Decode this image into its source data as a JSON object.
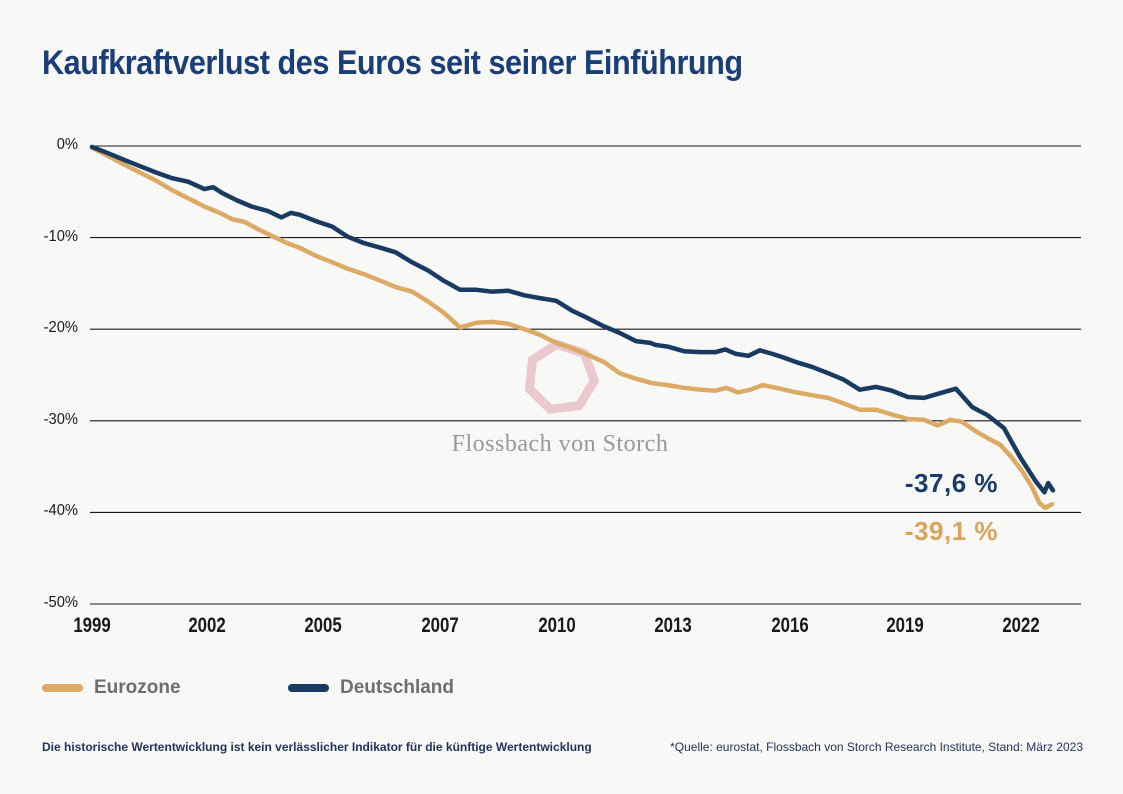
{
  "title": "Kaufkraftverlust des Euros seit seiner Einführung",
  "watermark": {
    "text": "Flossbach von Storch"
  },
  "end_labels": {
    "deutschland": "-37,6 %",
    "eurozone": "-39,1 %"
  },
  "legend": {
    "items": [
      {
        "label": "Eurozone",
        "color": "#dcaa64"
      },
      {
        "label": "Deutschland",
        "color": "#193a61"
      }
    ]
  },
  "footer": {
    "disclaimer": "Die historische Wertentwicklung ist kein verlässlicher Indikator für die künftige Wertentwicklung",
    "source": "*Quelle: eurostat, Flossbach von Storch Research Institute, Stand: März 2023"
  },
  "colors": {
    "background": "#f8f8f7",
    "title": "#1c3e78",
    "grid": "#1a1a1a",
    "eurozone_line": "#dcaa64",
    "deutschland_line": "#193a61",
    "end_label_deutschland": "#1a3c6b",
    "end_label_eurozone": "#d9a45c",
    "watermark_ring": "#e7bcc5",
    "watermark_text": "#98999b",
    "axis_text": "#1a1a1a",
    "legend_text": "#6e6e6e",
    "footer_text": "#20355e"
  },
  "chart_data": {
    "type": "line",
    "title": "Kaufkraftverlust des Euros seit seiner Einführung",
    "xlabel": "",
    "ylabel": "",
    "ylim": [
      0,
      -50
    ],
    "grid": "horizontal",
    "legend_position": "bottom-left",
    "unit": "%",
    "y_ticks": [
      {
        "label": "0%",
        "value": 0
      },
      {
        "label": "-10%",
        "value": -10
      },
      {
        "label": "-20%",
        "value": -20
      },
      {
        "label": "-30%",
        "value": -30
      },
      {
        "label": "-40%",
        "value": -40
      },
      {
        "label": "-50%",
        "value": -50
      }
    ],
    "x_ticks": [
      {
        "label": "1999",
        "t": 0.0
      },
      {
        "label": "2002",
        "t": 0.12
      },
      {
        "label": "2005",
        "t": 0.24
      },
      {
        "label": "2007",
        "t": 0.362
      },
      {
        "label": "2010",
        "t": 0.484
      },
      {
        "label": "2013",
        "t": 0.605
      },
      {
        "label": "2016",
        "t": 0.726
      },
      {
        "label": "2019",
        "t": 0.846
      },
      {
        "label": "2022",
        "t": 0.967
      }
    ],
    "series": [
      {
        "name": "Eurozone",
        "color": "#dcaa64",
        "final_value": "-39,1 %",
        "points": [
          [
            0.0,
            -0.2
          ],
          [
            0.017,
            -1.1
          ],
          [
            0.033,
            -2.0
          ],
          [
            0.05,
            -2.9
          ],
          [
            0.067,
            -3.8
          ],
          [
            0.083,
            -4.8
          ],
          [
            0.1,
            -5.7
          ],
          [
            0.117,
            -6.6
          ],
          [
            0.133,
            -7.3
          ],
          [
            0.146,
            -8.0
          ],
          [
            0.159,
            -8.3
          ],
          [
            0.173,
            -9.1
          ],
          [
            0.187,
            -9.8
          ],
          [
            0.203,
            -10.6
          ],
          [
            0.216,
            -11.1
          ],
          [
            0.233,
            -12.0
          ],
          [
            0.25,
            -12.7
          ],
          [
            0.266,
            -13.4
          ],
          [
            0.283,
            -14.0
          ],
          [
            0.3,
            -14.7
          ],
          [
            0.316,
            -15.4
          ],
          [
            0.333,
            -15.9
          ],
          [
            0.35,
            -17.0
          ],
          [
            0.366,
            -18.2
          ],
          [
            0.383,
            -19.8
          ],
          [
            0.4,
            -19.3
          ],
          [
            0.416,
            -19.2
          ],
          [
            0.433,
            -19.4
          ],
          [
            0.45,
            -20.0
          ],
          [
            0.466,
            -20.6
          ],
          [
            0.483,
            -21.5
          ],
          [
            0.5,
            -22.1
          ],
          [
            0.516,
            -22.8
          ],
          [
            0.533,
            -23.6
          ],
          [
            0.549,
            -24.8
          ],
          [
            0.566,
            -25.4
          ],
          [
            0.583,
            -25.9
          ],
          [
            0.599,
            -26.1
          ],
          [
            0.616,
            -26.4
          ],
          [
            0.633,
            -26.6
          ],
          [
            0.649,
            -26.7
          ],
          [
            0.66,
            -26.4
          ],
          [
            0.672,
            -26.9
          ],
          [
            0.685,
            -26.6
          ],
          [
            0.698,
            -26.1
          ],
          [
            0.716,
            -26.5
          ],
          [
            0.733,
            -26.9
          ],
          [
            0.749,
            -27.2
          ],
          [
            0.766,
            -27.5
          ],
          [
            0.782,
            -28.1
          ],
          [
            0.799,
            -28.8
          ],
          [
            0.816,
            -28.8
          ],
          [
            0.832,
            -29.3
          ],
          [
            0.849,
            -29.8
          ],
          [
            0.866,
            -29.9
          ],
          [
            0.88,
            -30.5
          ],
          [
            0.893,
            -29.9
          ],
          [
            0.905,
            -30.1
          ],
          [
            0.919,
            -31.1
          ],
          [
            0.932,
            -31.9
          ],
          [
            0.945,
            -32.6
          ],
          [
            0.957,
            -34.0
          ],
          [
            0.968,
            -35.5
          ],
          [
            0.978,
            -37.2
          ],
          [
            0.986,
            -39.0
          ],
          [
            0.992,
            -39.5
          ],
          [
            0.999,
            -39.1
          ]
        ]
      },
      {
        "name": "Deutschland",
        "color": "#193a61",
        "final_value": "-37,6 %",
        "points": [
          [
            0.0,
            -0.1
          ],
          [
            0.017,
            -0.8
          ],
          [
            0.033,
            -1.5
          ],
          [
            0.05,
            -2.2
          ],
          [
            0.067,
            -2.9
          ],
          [
            0.083,
            -3.5
          ],
          [
            0.1,
            -3.9
          ],
          [
            0.117,
            -4.7
          ],
          [
            0.126,
            -4.5
          ],
          [
            0.135,
            -5.1
          ],
          [
            0.15,
            -5.9
          ],
          [
            0.166,
            -6.6
          ],
          [
            0.183,
            -7.1
          ],
          [
            0.197,
            -7.8
          ],
          [
            0.207,
            -7.3
          ],
          [
            0.216,
            -7.5
          ],
          [
            0.233,
            -8.2
          ],
          [
            0.25,
            -8.8
          ],
          [
            0.266,
            -9.9
          ],
          [
            0.283,
            -10.6
          ],
          [
            0.3,
            -11.1
          ],
          [
            0.316,
            -11.6
          ],
          [
            0.333,
            -12.7
          ],
          [
            0.35,
            -13.6
          ],
          [
            0.366,
            -14.7
          ],
          [
            0.383,
            -15.7
          ],
          [
            0.4,
            -15.7
          ],
          [
            0.416,
            -15.9
          ],
          [
            0.433,
            -15.8
          ],
          [
            0.45,
            -16.3
          ],
          [
            0.466,
            -16.6
          ],
          [
            0.483,
            -16.9
          ],
          [
            0.5,
            -18.0
          ],
          [
            0.516,
            -18.8
          ],
          [
            0.533,
            -19.7
          ],
          [
            0.542,
            -20.1
          ],
          [
            0.549,
            -20.4
          ],
          [
            0.566,
            -21.3
          ],
          [
            0.581,
            -21.5
          ],
          [
            0.586,
            -21.7
          ],
          [
            0.599,
            -21.9
          ],
          [
            0.616,
            -22.4
          ],
          [
            0.633,
            -22.5
          ],
          [
            0.649,
            -22.5
          ],
          [
            0.659,
            -22.2
          ],
          [
            0.67,
            -22.7
          ],
          [
            0.683,
            -22.9
          ],
          [
            0.695,
            -22.3
          ],
          [
            0.708,
            -22.7
          ],
          [
            0.72,
            -23.1
          ],
          [
            0.733,
            -23.6
          ],
          [
            0.749,
            -24.1
          ],
          [
            0.766,
            -24.8
          ],
          [
            0.782,
            -25.5
          ],
          [
            0.799,
            -26.6
          ],
          [
            0.816,
            -26.3
          ],
          [
            0.832,
            -26.7
          ],
          [
            0.849,
            -27.4
          ],
          [
            0.866,
            -27.5
          ],
          [
            0.882,
            -27.0
          ],
          [
            0.899,
            -26.5
          ],
          [
            0.916,
            -28.5
          ],
          [
            0.932,
            -29.4
          ],
          [
            0.949,
            -30.8
          ],
          [
            0.966,
            -34.0
          ],
          [
            0.982,
            -36.6
          ],
          [
            0.991,
            -37.8
          ],
          [
            0.995,
            -36.8
          ],
          [
            1.0,
            -37.6
          ]
        ]
      }
    ]
  }
}
